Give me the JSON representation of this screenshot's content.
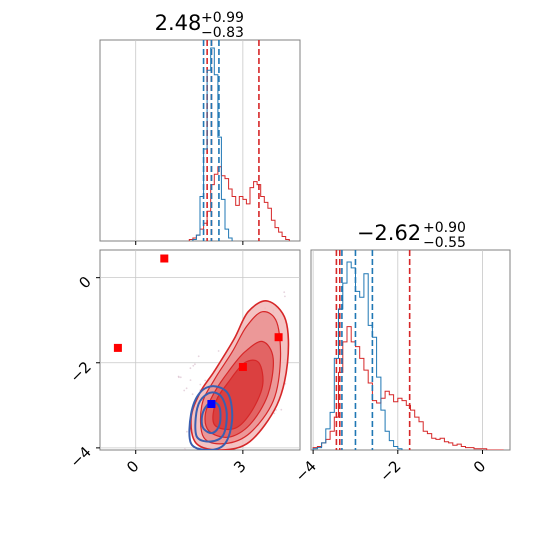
{
  "chart_data": {
    "type": "corner",
    "parameters": [
      {
        "title": {
          "median": "2.48",
          "plus": "+0.99",
          "minus": "−0.83"
        },
        "range": [
          -1.0,
          4.6
        ],
        "ticks": [
          {
            "value": 0,
            "label": "0"
          },
          {
            "value": 3,
            "label": "3"
          }
        ]
      },
      {
        "title": {
          "median": "−2.62",
          "plus": "+0.90",
          "minus": "−0.55"
        },
        "range": [
          -4.05,
          0.65
        ],
        "ticks": [
          {
            "value": -4,
            "label": "−4"
          },
          {
            "value": -2,
            "label": "−2"
          },
          {
            "value": 0,
            "label": "0"
          }
        ]
      }
    ],
    "grid": true,
    "series": [
      {
        "color": "#d62728",
        "marginal_1": {
          "edges": [
            1.5,
            1.6,
            1.7,
            1.8,
            1.9,
            2.0,
            2.1,
            2.2,
            2.3,
            2.4,
            2.5,
            2.6,
            2.7,
            2.8,
            2.9,
            3.0,
            3.1,
            3.2,
            3.3,
            3.4,
            3.5,
            3.6,
            3.7,
            3.8,
            3.9,
            4.0,
            4.1,
            4.2,
            4.3
          ],
          "counts": [
            1,
            2,
            4,
            8,
            12,
            20,
            38,
            45,
            50,
            44,
            42,
            35,
            30,
            24,
            30,
            28,
            25,
            36,
            40,
            38,
            30,
            26,
            22,
            14,
            9,
            6,
            3,
            1
          ]
        },
        "marginal_2": {
          "edges": [
            -4.0,
            -3.9,
            -3.8,
            -3.7,
            -3.6,
            -3.5,
            -3.4,
            -3.3,
            -3.2,
            -3.1,
            -3.0,
            -2.9,
            -2.8,
            -2.7,
            -2.6,
            -2.5,
            -2.4,
            -2.3,
            -2.2,
            -2.1,
            -2.0,
            -1.9,
            -1.8,
            -1.7,
            -1.6,
            -1.5,
            -1.4,
            -1.3,
            -1.2,
            -1.1,
            -1.0,
            -0.9,
            -0.8,
            -0.7,
            -0.6,
            -0.5,
            -0.4,
            -0.3,
            -0.2,
            -0.1,
            0.0,
            0.1,
            0.2,
            0.3,
            0.4,
            0.5
          ],
          "counts": [
            2,
            3,
            6,
            9,
            16,
            28,
            66,
            92,
            105,
            92,
            88,
            78,
            68,
            57,
            42,
            40,
            44,
            50,
            47,
            41,
            44,
            42,
            38,
            34,
            28,
            24,
            16,
            14,
            10,
            9,
            10,
            7,
            6,
            4,
            5,
            3,
            2,
            2,
            1,
            1,
            1,
            0,
            0,
            0,
            0
          ]
        },
        "quantiles_1": [
          2.0,
          2.12,
          3.45
        ],
        "quantiles_2": [
          -3.45,
          -3.37,
          -1.72
        ],
        "contours": [
          [
            [
              1.7,
              -3.9
            ],
            [
              2.4,
              -4.05
            ],
            [
              3.2,
              -3.85
            ],
            [
              3.95,
              -3.0
            ],
            [
              4.25,
              -2.0
            ],
            [
              4.2,
              -1.0
            ],
            [
              3.7,
              -0.55
            ],
            [
              3.15,
              -0.8
            ],
            [
              2.75,
              -1.45
            ],
            [
              2.2,
              -2.2
            ],
            [
              1.8,
              -2.7
            ],
            [
              1.55,
              -3.3
            ]
          ],
          [
            [
              1.9,
              -3.75
            ],
            [
              2.5,
              -3.9
            ],
            [
              3.2,
              -3.65
            ],
            [
              3.85,
              -2.9
            ],
            [
              4.05,
              -1.95
            ],
            [
              3.95,
              -1.05
            ],
            [
              3.55,
              -0.8
            ],
            [
              3.1,
              -1.15
            ],
            [
              2.7,
              -1.75
            ],
            [
              2.2,
              -2.4
            ],
            [
              1.85,
              -3.0
            ]
          ],
          [
            [
              2.05,
              -3.6
            ],
            [
              2.6,
              -3.75
            ],
            [
              3.2,
              -3.45
            ],
            [
              3.7,
              -2.75
            ],
            [
              3.85,
              -1.9
            ],
            [
              3.55,
              -1.5
            ],
            [
              3.05,
              -1.75
            ],
            [
              2.6,
              -2.2
            ],
            [
              2.2,
              -2.7
            ],
            [
              1.95,
              -3.2
            ]
          ],
          [
            [
              2.2,
              -3.45
            ],
            [
              2.75,
              -3.55
            ],
            [
              3.2,
              -3.2
            ],
            [
              3.55,
              -2.55
            ],
            [
              3.45,
              -2.0
            ],
            [
              3.05,
              -2.0
            ],
            [
              2.6,
              -2.45
            ],
            [
              2.25,
              -2.9
            ]
          ]
        ],
        "markers": [
          [
            -0.5,
            -1.65
          ],
          [
            0.8,
            0.45
          ],
          [
            3.0,
            -2.1
          ],
          [
            4.0,
            -1.4
          ]
        ]
      },
      {
        "color": "#1f77b4",
        "marginal_1": {
          "edges": [
            1.6,
            1.7,
            1.8,
            1.9,
            2.0,
            2.1,
            2.2,
            2.3,
            2.4,
            2.5,
            2.6,
            2.7
          ],
          "counts": [
            1,
            4,
            30,
            62,
            115,
            130,
            112,
            70,
            28,
            8,
            2
          ]
        },
        "marginal_2": {
          "edges": [
            -4.0,
            -3.9,
            -3.8,
            -3.7,
            -3.6,
            -3.5,
            -3.4,
            -3.3,
            -3.2,
            -3.1,
            -3.0,
            -2.9,
            -2.8,
            -2.7,
            -2.6,
            -2.5,
            -2.4,
            -2.3,
            -2.2,
            -2.1,
            -2.0,
            -1.9
          ],
          "counts": [
            1,
            2,
            6,
            18,
            32,
            78,
            120,
            142,
            160,
            155,
            135,
            130,
            150,
            106,
            96,
            62,
            34,
            16,
            8,
            3,
            1
          ]
        },
        "quantiles_1": [
          1.9,
          2.12,
          2.33
        ],
        "quantiles_2": [
          -3.32,
          -3.0,
          -2.6
        ],
        "contours": [
          [
            [
              1.55,
              -3.9
            ],
            [
              2.05,
              -4.05
            ],
            [
              2.5,
              -3.9
            ],
            [
              2.7,
              -3.35
            ],
            [
              2.6,
              -2.75
            ],
            [
              2.2,
              -2.55
            ],
            [
              1.8,
              -2.7
            ],
            [
              1.55,
              -3.2
            ]
          ],
          [
            [
              1.72,
              -3.75
            ],
            [
              2.1,
              -3.85
            ],
            [
              2.45,
              -3.7
            ],
            [
              2.55,
              -3.2
            ],
            [
              2.4,
              -2.8
            ],
            [
              2.1,
              -2.7
            ],
            [
              1.8,
              -2.9
            ],
            [
              1.68,
              -3.3
            ]
          ],
          [
            [
              1.9,
              -3.55
            ],
            [
              2.15,
              -3.65
            ],
            [
              2.35,
              -3.45
            ],
            [
              2.35,
              -3.05
            ],
            [
              2.15,
              -2.92
            ],
            [
              1.95,
              -3.05
            ],
            [
              1.85,
              -3.3
            ]
          ]
        ],
        "markers": [
          [
            2.12,
            -2.97
          ]
        ]
      }
    ]
  }
}
